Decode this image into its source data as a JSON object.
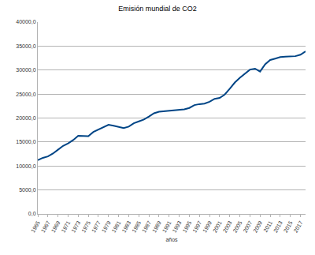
{
  "chart_data": {
    "type": "line",
    "title": "Emisión mundial de CO2",
    "x_label": "años",
    "categories": [
      "1965",
      null,
      "1967",
      null,
      "1969",
      null,
      "1971",
      null,
      "1973",
      null,
      "1975",
      null,
      "1977",
      null,
      "1979",
      null,
      "1981",
      null,
      "1983",
      null,
      "1985",
      null,
      "1987",
      null,
      "1989",
      null,
      "1991",
      null,
      "1993",
      null,
      "1995",
      null,
      "1997",
      null,
      "1999",
      null,
      "2001",
      null,
      "2003",
      null,
      "2005",
      null,
      "2007",
      null,
      "2009",
      null,
      "2011",
      null,
      "2013",
      null,
      "2015",
      null,
      "2017",
      null
    ],
    "values": [
      11200,
      11700,
      12000,
      12600,
      13400,
      14200,
      14700,
      15400,
      16300,
      16300,
      16200,
      17100,
      17600,
      18000,
      18600,
      18400,
      18100,
      17900,
      18200,
      18900,
      19300,
      19700,
      20300,
      21000,
      21300,
      21400,
      21400,
      21500,
      21600,
      21800,
      22100,
      22700,
      22900,
      23000,
      23400,
      24000,
      24200,
      24900,
      26100,
      27400,
      28400,
      29200,
      30100,
      30300,
      29700,
      31200,
      32100,
      32400,
      32700,
      32800,
      32800,
      32900,
      33200,
      33900
    ],
    "color": "#004586",
    "ylim": [
      0,
      40000
    ],
    "yticks": [
      {
        "value": 0,
        "label": "0,0"
      },
      {
        "value": 5000,
        "label": "5000,0"
      },
      {
        "value": 10000,
        "label": "10000,0"
      },
      {
        "value": 15000,
        "label": "15000,0"
      },
      {
        "value": 20000,
        "label": "20000,0"
      },
      {
        "value": 25000,
        "label": "25000,0"
      },
      {
        "value": 30000,
        "label": "30000,0"
      },
      {
        "value": 35000,
        "label": "35000,0"
      },
      {
        "value": 40000,
        "label": "40000,0"
      }
    ],
    "grid": true
  }
}
